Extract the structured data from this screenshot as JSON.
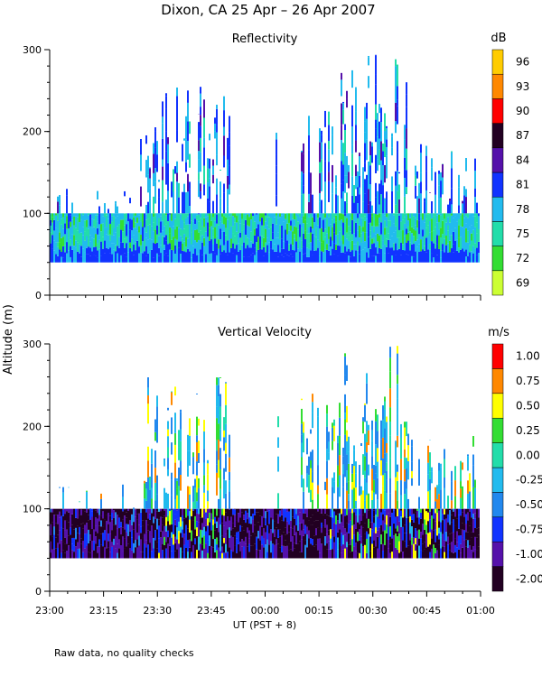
{
  "figure": {
    "title": "Dixon, CA 25 Apr – 26 Apr 2007",
    "shared_ylabel": "Altitude (m)",
    "xlabel": "UT  (PST + 8)",
    "footnote": "Raw data, no quality checks",
    "x_ticks": [
      "23:00",
      "23:15",
      "23:30",
      "23:45",
      "00:00",
      "00:15",
      "00:30",
      "00:45",
      "01:00"
    ]
  },
  "chart_data": [
    {
      "type": "heatmap",
      "title": "Reflectivity",
      "xlabel": "UT  (PST + 8)",
      "ylabel": "Altitude (m)",
      "x_range": [
        "23:00",
        "01:00"
      ],
      "x_range_minutes": [
        0,
        120
      ],
      "ylim": [
        0,
        300
      ],
      "y_ticks": [
        0,
        100,
        200,
        300
      ],
      "colorbar": {
        "unit": "dB",
        "tick_labels": [
          "69",
          "72",
          "75",
          "78",
          "81",
          "84",
          "87",
          "90",
          "93",
          "96"
        ],
        "colors": [
          "#ccff33",
          "#33dd33",
          "#22ddaa",
          "#22bbee",
          "#1133ff",
          "#5511aa",
          "#220022",
          "#ff0000",
          "#ff8800",
          "#ffcc00"
        ]
      },
      "description_of_data": {
        "base_layer_altitude_m": [
          40,
          100
        ],
        "sparse_echo_max_altitude_m": 300,
        "dominant_classes": [
          "75",
          "78"
        ],
        "lowest_layer_class": "81"
      }
    },
    {
      "type": "heatmap",
      "title": "Vertical Velocity",
      "xlabel": "UT  (PST + 8)",
      "ylabel": "Altitude (m)",
      "x_range": [
        "23:00",
        "01:00"
      ],
      "x_range_minutes": [
        0,
        120
      ],
      "ylim": [
        0,
        300
      ],
      "y_ticks": [
        0,
        100,
        200,
        300
      ],
      "colorbar": {
        "unit": "m/s",
        "tick_labels": [
          "-2.00",
          "-1.00",
          "-0.75",
          "-0.50",
          "-0.25",
          "0.00",
          "0.25",
          "0.50",
          "0.75",
          "1.00"
        ],
        "colors": [
          "#220022",
          "#5511aa",
          "#1133ff",
          "#2288ee",
          "#22bbee",
          "#22ddaa",
          "#33dd33",
          "#ffff00",
          "#ff8800",
          "#ff0000"
        ]
      },
      "description_of_data": {
        "base_layer_altitude_m": [
          40,
          100
        ],
        "sparse_echo_max_altitude_m": 300,
        "dominant_classes": [
          "-2.00",
          "-1.00"
        ]
      }
    }
  ]
}
